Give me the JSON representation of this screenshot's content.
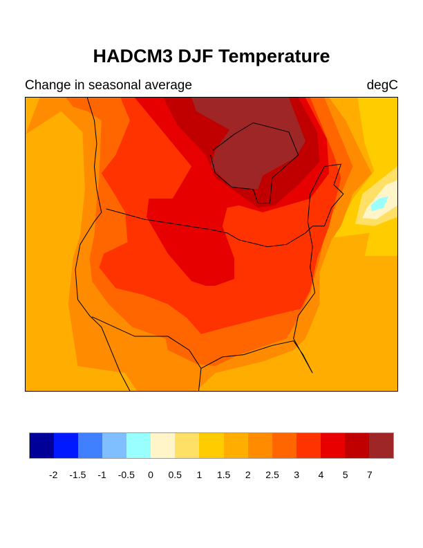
{
  "title": "HADCM3 DJF Temperature",
  "subtitle_left": "Change in seasonal average",
  "subtitle_right": "degC",
  "colorbar": {
    "colors": [
      "#000099",
      "#0019ff",
      "#4080ff",
      "#80bfff",
      "#99ffff",
      "#fff5c8",
      "#ffe066",
      "#ffcc00",
      "#ffad00",
      "#ff8c00",
      "#ff6600",
      "#ff3300",
      "#e60000",
      "#c00000",
      "#9e2626"
    ],
    "labels": [
      "-2",
      "-1.5",
      "-1",
      "-0.5",
      "0",
      "0.5",
      "1",
      "1.5",
      "2",
      "2.5",
      "3",
      "4",
      "5",
      "7"
    ]
  },
  "map_levels": {
    "background": "#ffad00",
    "yellow": "#ffcc00",
    "light_yellow": "#ffe066",
    "cream": "#fff5c8",
    "cyan": "#99ffff",
    "level_2_5": "#ff8c00",
    "level_3": "#ff6600",
    "level_4": "#ff3300",
    "level_5": "#e60000",
    "level_7": "#c00000",
    "level_max": "#9e2626"
  }
}
